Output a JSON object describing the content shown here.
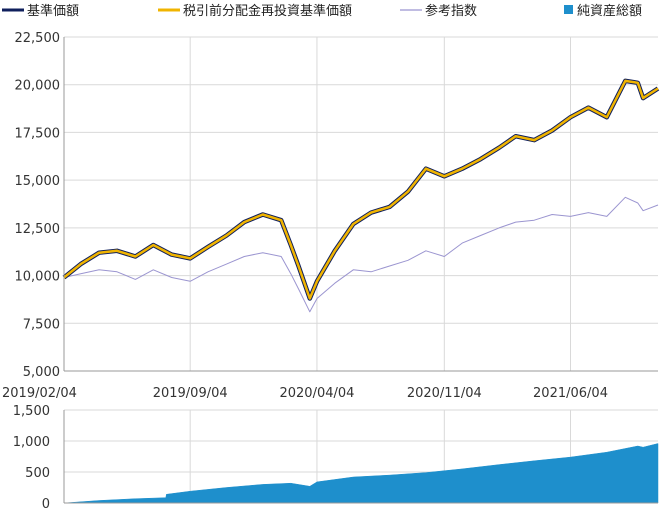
{
  "chart_data": [
    {
      "type": "line",
      "legend": {
        "placement": "top",
        "items": [
          {
            "name": "基準価額",
            "color": "#0f1f5c",
            "marker": "line"
          },
          {
            "name": "税引前分配金再投資基準価額",
            "color": "#f0b400",
            "marker": "line"
          },
          {
            "name": "参考指数",
            "color": "#9b95d0",
            "marker": "line"
          },
          {
            "name": "純資産総額",
            "color": "#1e8fcc",
            "marker": "square"
          }
        ]
      },
      "x_labels": [
        "2019/02/04",
        "2019/09/04",
        "2020/04/04",
        "2020/11/04",
        "2021/06/04"
      ],
      "x_range": [
        "2019/02/04",
        "2021/10/29"
      ],
      "ylim": [
        5000,
        22500
      ],
      "y_ticks": [
        5000,
        7500,
        10000,
        12500,
        15000,
        17500,
        20000,
        22500
      ],
      "y_tick_labels": [
        "5,000",
        "7,500",
        "10,000",
        "12,500",
        "15,000",
        "17,500",
        "20,000",
        "22,500"
      ],
      "grid": true,
      "series": [
        {
          "name": "基準価額",
          "color": "#0f1f5c",
          "x": [
            "2019/02/04",
            "2019/03/04",
            "2019/04/04",
            "2019/05/04",
            "2019/06/04",
            "2019/07/04",
            "2019/08/04",
            "2019/09/04",
            "2019/10/04",
            "2019/11/04",
            "2019/12/04",
            "2020/01/04",
            "2020/02/04",
            "2020/02/20",
            "2020/03/04",
            "2020/03/23",
            "2020/04/04",
            "2020/05/04",
            "2020/06/04",
            "2020/07/04",
            "2020/08/04",
            "2020/09/04",
            "2020/10/04",
            "2020/11/04",
            "2020/12/04",
            "2021/01/04",
            "2021/02/04",
            "2021/03/04",
            "2021/04/04",
            "2021/05/04",
            "2021/06/04",
            "2021/07/04",
            "2021/08/04",
            "2021/09/04",
            "2021/09/25",
            "2021/10/04",
            "2021/10/29"
          ],
          "values": [
            9900,
            10600,
            11200,
            11300,
            11000,
            11600,
            11100,
            10900,
            11500,
            12100,
            12800,
            13200,
            12900,
            11600,
            10500,
            8800,
            9700,
            11300,
            12700,
            13300,
            13600,
            14400,
            15600,
            15200,
            15600,
            16100,
            16700,
            17300,
            17100,
            17600,
            18300,
            18800,
            18300,
            20200,
            20100,
            19300,
            19800
          ]
        },
        {
          "name": "税引前分配金再投資基準価額",
          "color": "#f0b400",
          "x": [
            "2019/02/04",
            "2019/03/04",
            "2019/04/04",
            "2019/05/04",
            "2019/06/04",
            "2019/07/04",
            "2019/08/04",
            "2019/09/04",
            "2019/10/04",
            "2019/11/04",
            "2019/12/04",
            "2020/01/04",
            "2020/02/04",
            "2020/02/20",
            "2020/03/04",
            "2020/03/23",
            "2020/04/04",
            "2020/05/04",
            "2020/06/04",
            "2020/07/04",
            "2020/08/04",
            "2020/09/04",
            "2020/10/04",
            "2020/11/04",
            "2020/12/04",
            "2021/01/04",
            "2021/02/04",
            "2021/03/04",
            "2021/04/04",
            "2021/05/04",
            "2021/06/04",
            "2021/07/04",
            "2021/08/04",
            "2021/09/04",
            "2021/09/25",
            "2021/10/04",
            "2021/10/29"
          ],
          "values": [
            9900,
            10600,
            11200,
            11300,
            11000,
            11600,
            11100,
            10900,
            11500,
            12100,
            12800,
            13200,
            12900,
            11600,
            10500,
            8800,
            9700,
            11300,
            12700,
            13300,
            13600,
            14400,
            15600,
            15200,
            15600,
            16100,
            16700,
            17300,
            17100,
            17600,
            18300,
            18800,
            18300,
            20200,
            20100,
            19300,
            19800
          ]
        },
        {
          "name": "参考指数",
          "color": "#9b95d0",
          "x": [
            "2019/02/04",
            "2019/03/04",
            "2019/04/04",
            "2019/05/04",
            "2019/06/04",
            "2019/07/04",
            "2019/08/04",
            "2019/09/04",
            "2019/10/04",
            "2019/11/04",
            "2019/12/04",
            "2020/01/04",
            "2020/02/04",
            "2020/02/20",
            "2020/03/04",
            "2020/03/23",
            "2020/04/04",
            "2020/05/04",
            "2020/06/04",
            "2020/07/04",
            "2020/08/04",
            "2020/09/04",
            "2020/10/04",
            "2020/11/04",
            "2020/12/04",
            "2021/01/04",
            "2021/02/04",
            "2021/03/04",
            "2021/04/04",
            "2021/05/04",
            "2021/06/04",
            "2021/07/04",
            "2021/08/04",
            "2021/09/04",
            "2021/09/25",
            "2021/10/04",
            "2021/10/29"
          ],
          "values": [
            9900,
            10100,
            10300,
            10200,
            9800,
            10300,
            9900,
            9700,
            10200,
            10600,
            11000,
            11200,
            11000,
            10100,
            9300,
            8100,
            8800,
            9600,
            10300,
            10200,
            10500,
            10800,
            11300,
            11000,
            11700,
            12100,
            12500,
            12800,
            12900,
            13200,
            13100,
            13300,
            13100,
            14100,
            13800,
            13400,
            13700
          ]
        }
      ]
    },
    {
      "type": "area",
      "x_range": [
        "2019/02/04",
        "2021/10/29"
      ],
      "ylim": [
        0,
        1500
      ],
      "y_ticks": [
        0,
        500,
        1000,
        1500
      ],
      "y_tick_labels": [
        "0",
        "500",
        "1,000",
        "1,500"
      ],
      "grid": true,
      "series": [
        {
          "name": "純資産総額",
          "color": "#1e8fcc",
          "x": [
            "2019/02/04",
            "2019/04/04",
            "2019/06/04",
            "2019/07/25",
            "2019/07/26",
            "2019/09/04",
            "2019/11/04",
            "2020/01/04",
            "2020/02/20",
            "2020/03/23",
            "2020/04/04",
            "2020/06/04",
            "2020/08/04",
            "2020/10/04",
            "2020/12/04",
            "2021/02/04",
            "2021/04/04",
            "2021/06/04",
            "2021/08/04",
            "2021/09/25",
            "2021/10/04",
            "2021/10/29"
          ],
          "values": [
            0,
            40,
            70,
            85,
            140,
            190,
            250,
            300,
            320,
            270,
            340,
            420,
            450,
            490,
            550,
            620,
            680,
            740,
            820,
            920,
            900,
            960
          ]
        }
      ]
    }
  ]
}
